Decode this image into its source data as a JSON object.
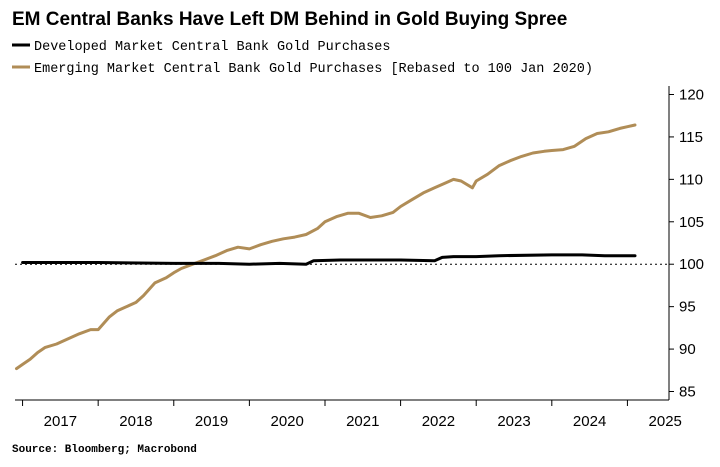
{
  "chart_data": {
    "type": "line",
    "title": "EM Central Banks Have Left DM Behind in Gold Buying Spree",
    "source": "Source: Bloomberg; Macrobond",
    "ylim": [
      84,
      121
    ],
    "yticks": [
      85,
      90,
      95,
      100,
      105,
      110,
      115,
      120
    ],
    "y_axis_side": "right",
    "reference_line": {
      "y": 100,
      "style": "dotted"
    },
    "xlim": [
      2016.9,
      2025.55
    ],
    "xticks": [
      2017,
      2018,
      2019,
      2020,
      2021,
      2022,
      2023,
      2024,
      2025
    ],
    "legend_position": "top-left",
    "series": [
      {
        "name": "Developed Market Central Bank Gold Purchases",
        "color": "#000000",
        "x": [
          2017.0,
          2018.0,
          2019.0,
          2019.6,
          2020.0,
          2020.4,
          2020.75,
          2020.85,
          2021.2,
          2022.0,
          2022.45,
          2022.55,
          2022.7,
          2023.0,
          2023.3,
          2024.0,
          2024.4,
          2024.7,
          2025.0,
          2025.1
        ],
        "values": [
          100.2,
          100.2,
          100.1,
          100.1,
          100.0,
          100.1,
          100.0,
          100.4,
          100.5,
          100.5,
          100.4,
          100.8,
          100.9,
          100.9,
          101.0,
          101.1,
          101.1,
          101.0,
          101.0,
          101.0
        ]
      },
      {
        "name": "Emerging Market Central Bank Gold Purchases [Rebased to 100 Jan 2020)",
        "color": "#b08d57",
        "x": [
          2016.92,
          2017.0,
          2017.1,
          2017.2,
          2017.3,
          2017.45,
          2017.6,
          2017.75,
          2017.9,
          2018.0,
          2018.15,
          2018.25,
          2018.35,
          2018.5,
          2018.6,
          2018.75,
          2018.9,
          2019.0,
          2019.1,
          2019.25,
          2019.4,
          2019.55,
          2019.7,
          2019.85,
          2020.0,
          2020.15,
          2020.3,
          2020.45,
          2020.6,
          2020.75,
          2020.9,
          2021.0,
          2021.15,
          2021.3,
          2021.45,
          2021.6,
          2021.75,
          2021.9,
          2022.0,
          2022.15,
          2022.3,
          2022.45,
          2022.6,
          2022.7,
          2022.8,
          2022.95,
          2023.0,
          2023.15,
          2023.3,
          2023.45,
          2023.6,
          2023.75,
          2023.9,
          2024.0,
          2024.15,
          2024.3,
          2024.45,
          2024.6,
          2024.75,
          2024.9,
          2025.0,
          2025.1
        ],
        "values": [
          87.7,
          88.2,
          88.8,
          89.6,
          90.2,
          90.6,
          91.2,
          91.8,
          92.3,
          92.3,
          93.8,
          94.5,
          94.9,
          95.5,
          96.3,
          97.8,
          98.4,
          99.0,
          99.5,
          100.0,
          100.5,
          101.0,
          101.6,
          102.0,
          101.8,
          102.3,
          102.7,
          103.0,
          103.2,
          103.5,
          104.2,
          105.0,
          105.6,
          106.0,
          106.0,
          105.5,
          105.7,
          106.1,
          106.8,
          107.6,
          108.4,
          109.0,
          109.6,
          110.0,
          109.8,
          109.0,
          109.8,
          110.6,
          111.6,
          112.2,
          112.7,
          113.1,
          113.3,
          113.4,
          113.5,
          113.9,
          114.8,
          115.4,
          115.6,
          116.0,
          116.2,
          116.4
        ]
      }
    ]
  }
}
